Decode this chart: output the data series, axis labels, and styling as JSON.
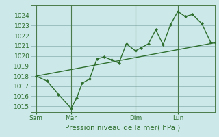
{
  "xlabel": "Pression niveau de la mer( hPa )",
  "bg_color": "#cce8e8",
  "grid_color": "#9bbfbf",
  "line_color": "#2d6e2d",
  "vline_color": "#4a7a4a",
  "ylim": [
    1014.4,
    1025.0
  ],
  "xlim": [
    0,
    100
  ],
  "yticks": [
    1015,
    1016,
    1017,
    1018,
    1019,
    1020,
    1021,
    1022,
    1023,
    1024
  ],
  "xtick_positions": [
    3,
    22,
    57,
    80
  ],
  "xtick_labels": [
    "Sam",
    "Mar",
    "Dim",
    "Lun"
  ],
  "vline_positions": [
    3,
    22,
    57,
    80
  ],
  "trend_x": [
    3,
    100
  ],
  "trend_y": [
    1018.0,
    1021.3
  ],
  "zigzag_x": [
    3,
    9,
    15,
    22,
    25,
    28,
    32,
    36,
    40,
    44,
    48,
    52,
    57,
    60,
    64,
    68,
    72,
    76,
    80,
    84,
    88,
    93,
    98
  ],
  "zigzag_y": [
    1018.0,
    1017.5,
    1016.2,
    1014.8,
    1015.8,
    1017.3,
    1017.7,
    1019.7,
    1019.9,
    1019.6,
    1019.3,
    1021.2,
    1020.5,
    1020.8,
    1021.2,
    1022.6,
    1021.1,
    1023.1,
    1024.4,
    1023.9,
    1024.1,
    1023.2,
    1021.3
  ],
  "marker_size": 2.5,
  "line_width": 1.0,
  "tick_fontsize": 6.5,
  "xlabel_fontsize": 7.5
}
